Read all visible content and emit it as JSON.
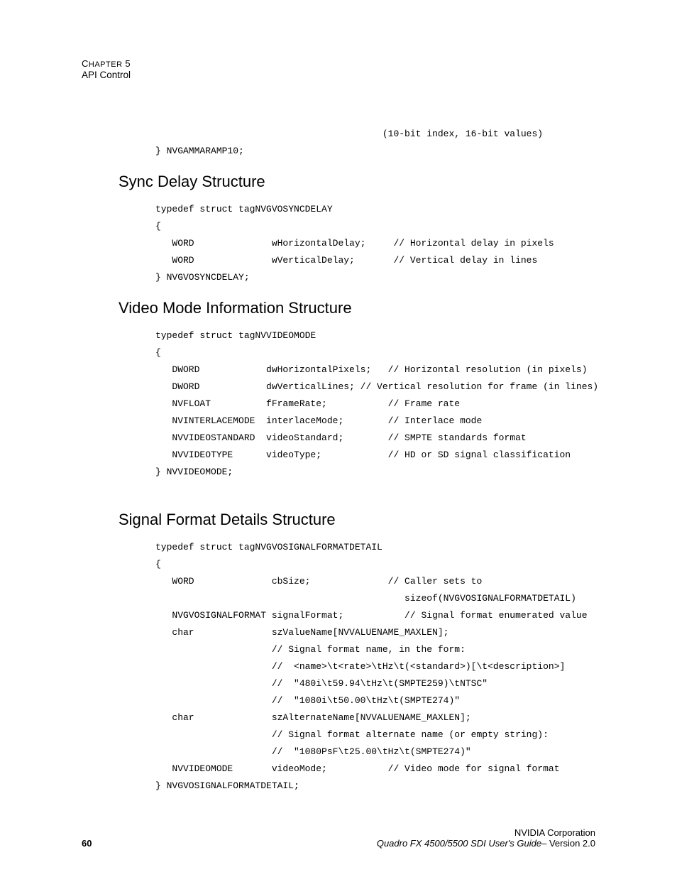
{
  "header": {
    "chapter_word": "Chapter",
    "chapter_num": "5",
    "subchapter": "API Control"
  },
  "pre_top": "                                         (10-bit index, 16-bit values)\n} NVGAMMARAMP10;",
  "sections": [
    {
      "heading": "Sync Delay Structure",
      "code": "typedef struct tagNVGVOSYNCDELAY\n{\n   WORD              wHorizontalDelay;     // Horizontal delay in pixels\n   WORD              wVerticalDelay;       // Vertical delay in lines\n} NVGVOSYNCDELAY;"
    },
    {
      "heading": "Video Mode Information Structure",
      "code": "typedef struct tagNVVIDEOMODE\n{\n   DWORD            dwHorizontalPixels;   // Horizontal resolution (in pixels)\n   DWORD            dwVerticalLines; // Vertical resolution for frame (in lines)\n   NVFLOAT          fFrameRate;           // Frame rate\n   NVINTERLACEMODE  interlaceMode;        // Interlace mode\n   NVVIDEOSTANDARD  videoStandard;        // SMPTE standards format\n   NVVIDEOTYPE      videoType;            // HD or SD signal classification\n} NVVIDEOMODE;"
    },
    {
      "heading": "Signal Format Details Structure",
      "space_above": true,
      "code": "typedef struct tagNVGVOSIGNALFORMATDETAIL\n{\n   WORD              cbSize;              // Caller sets to\n                                             sizeof(NVGVOSIGNALFORMATDETAIL)\n   NVGVOSIGNALFORMAT signalFormat;           // Signal format enumerated value\n   char              szValueName[NVVALUENAME_MAXLEN];\n                     // Signal format name, in the form:\n                     //  <name>\\t<rate>\\tHz\\t(<standard>)[\\t<description>]\n                     //  \"480i\\t59.94\\tHz\\t(SMPTE259)\\tNTSC\"\n                     //  \"1080i\\t50.00\\tHz\\t(SMPTE274)\"\n   char              szAlternateName[NVVALUENAME_MAXLEN];\n                     // Signal format alternate name (or empty string):\n                     //  \"1080PsF\\t25.00\\tHz\\t(SMPTE274)\"\n   NVVIDEOMODE       videoMode;           // Video mode for signal format\n} NVGVOSIGNALFORMATDETAIL;"
    }
  ],
  "footer": {
    "company": "NVIDIA Corporation",
    "page_number": "60",
    "doc_title": "Quadro FX 4500/5500 SDI User's Guide",
    "version_sep": "– ",
    "version": "Version 2.0"
  }
}
